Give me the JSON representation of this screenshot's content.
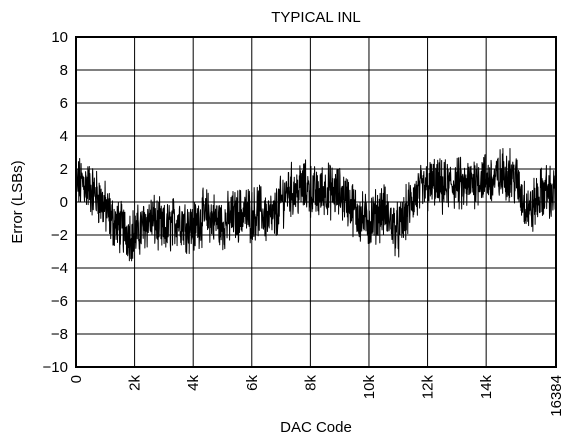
{
  "chart_data": {
    "type": "line",
    "title": "TYPICAL INL",
    "xlabel": "DAC Code",
    "ylabel": "Error (LSBs)",
    "xlim": [
      0,
      16384
    ],
    "ylim": [
      -10,
      10
    ],
    "grid": true,
    "x_ticks": [
      0,
      2000,
      4000,
      6000,
      8000,
      10000,
      12000,
      14000,
      16384
    ],
    "x_tick_labels": [
      "0",
      "2k",
      "4k",
      "6k",
      "8k",
      "10k",
      "12k",
      "14k",
      "16384"
    ],
    "y_ticks": [
      -10,
      -8,
      -6,
      -4,
      -2,
      0,
      2,
      4,
      6,
      8,
      10
    ],
    "y_tick_labels": [
      "−10",
      "−8",
      "−6",
      "−4",
      "−2",
      "0",
      "2",
      "4",
      "6",
      "8",
      "10"
    ],
    "series": [
      {
        "color": "#000000",
        "x": [
          0,
          250,
          500,
          750,
          1000,
          1250,
          1500,
          1750,
          2000,
          2250,
          2500,
          2750,
          3000,
          3250,
          3500,
          3750,
          4000,
          4250,
          4500,
          4750,
          5000,
          5250,
          5500,
          5750,
          6000,
          6250,
          6500,
          6750,
          7000,
          7250,
          7500,
          7750,
          8000,
          8250,
          8500,
          8750,
          9000,
          9250,
          9500,
          9750,
          10000,
          10250,
          10500,
          10750,
          11000,
          11250,
          11500,
          11750,
          12000,
          12250,
          12500,
          12750,
          13000,
          13250,
          13500,
          13750,
          14000,
          14250,
          14500,
          14750,
          15000,
          15250,
          15500,
          15750,
          16000,
          16250,
          16384
        ],
        "y": [
          1.0,
          1.2,
          0.8,
          0.3,
          -0.4,
          -1.2,
          -1.5,
          -1.8,
          -2.0,
          -1.6,
          -1.0,
          -1.3,
          -1.8,
          -1.4,
          -1.0,
          -1.3,
          -1.6,
          -1.0,
          -0.8,
          -1.1,
          -1.4,
          -1.0,
          -0.8,
          -0.6,
          -0.8,
          -0.5,
          -0.9,
          -1.0,
          0.0,
          0.8,
          0.6,
          0.9,
          0.7,
          0.4,
          0.8,
          0.6,
          0.5,
          0.2,
          -0.5,
          -1.0,
          -1.2,
          -0.8,
          -0.5,
          -1.2,
          -1.8,
          -0.8,
          0.2,
          0.6,
          0.9,
          1.1,
          0.8,
          1.0,
          1.2,
          0.8,
          1.2,
          1.5,
          1.4,
          1.3,
          1.6,
          1.8,
          1.4,
          0.2,
          -0.6,
          0.2,
          0.7,
          0.5,
          0.6
        ]
      }
    ]
  }
}
